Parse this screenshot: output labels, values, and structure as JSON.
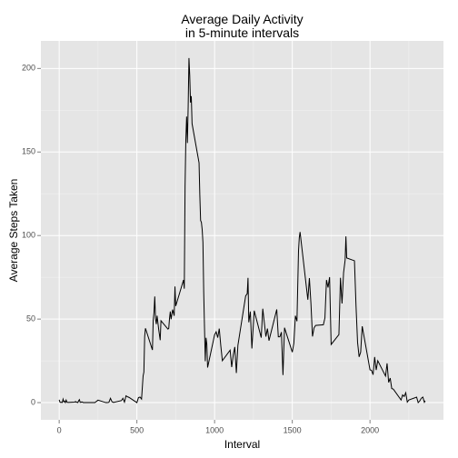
{
  "chart_data": {
    "type": "line",
    "title": "Average Daily Activity\nin 5-minute intervals",
    "x_label": "Interval",
    "y_label": "Average Steps Taken",
    "x": [
      0,
      5,
      10,
      15,
      20,
      25,
      30,
      35,
      40,
      45,
      50,
      55,
      100,
      105,
      110,
      115,
      120,
      125,
      130,
      135,
      140,
      145,
      150,
      155,
      200,
      230,
      250,
      300,
      310,
      320,
      330,
      340,
      350,
      400,
      410,
      420,
      430,
      440,
      450,
      500,
      510,
      520,
      530,
      540,
      545,
      550,
      555,
      600,
      605,
      610,
      615,
      620,
      625,
      630,
      640,
      650,
      655,
      700,
      705,
      710,
      715,
      720,
      730,
      740,
      745,
      750,
      800,
      805,
      810,
      815,
      820,
      825,
      830,
      835,
      840,
      845,
      850,
      855,
      900,
      905,
      910,
      915,
      920,
      925,
      930,
      935,
      940,
      945,
      950,
      955,
      1000,
      1010,
      1020,
      1030,
      1040,
      1050,
      1100,
      1110,
      1120,
      1130,
      1140,
      1150,
      1200,
      1210,
      1215,
      1220,
      1230,
      1240,
      1255,
      1300,
      1310,
      1330,
      1340,
      1350,
      1400,
      1410,
      1420,
      1430,
      1440,
      1450,
      1500,
      1510,
      1520,
      1530,
      1540,
      1545,
      1550,
      1600,
      1610,
      1620,
      1630,
      1640,
      1650,
      1700,
      1710,
      1720,
      1730,
      1740,
      1750,
      1800,
      1810,
      1820,
      1830,
      1840,
      1845,
      1850,
      1900,
      1910,
      1920,
      1930,
      1940,
      1950,
      2000,
      2010,
      2020,
      2030,
      2040,
      2050,
      2100,
      2110,
      2120,
      2130,
      2140,
      2150,
      2200,
      2210,
      2220,
      2230,
      2240,
      2250,
      2300,
      2310,
      2320,
      2330,
      2340,
      2350,
      2355
    ],
    "series": [
      {
        "name": "steps",
        "color": "#000000",
        "values": [
          1.7,
          0.3,
          0.1,
          0.2,
          0.1,
          2.1,
          0.5,
          0.9,
          0,
          1.5,
          0.3,
          0.1,
          0.3,
          0.7,
          0.2,
          0.3,
          0,
          1.1,
          1.8,
          0.2,
          0.2,
          0.4,
          0.3,
          0,
          0,
          0,
          1.5,
          0,
          0,
          0.2,
          2.6,
          0.5,
          0.1,
          1.2,
          2.6,
          0.3,
          4.1,
          3.5,
          3.1,
          0,
          3,
          3.3,
          2.1,
          16,
          18.3,
          39.5,
          44.5,
          31.5,
          49.3,
          53.8,
          63.5,
          50,
          47,
          52,
          44,
          37.4,
          49,
          44,
          44.4,
          50.5,
          54.5,
          49.9,
          55.7,
          52,
          69.5,
          57.8,
          73.4,
          68.2,
          129.4,
          157.5,
          171.2,
          155.4,
          177.3,
          206.2,
          195.9,
          179.6,
          183.4,
          167,
          143.5,
          124,
          109,
          108,
          103.7,
          95.9,
          66.2,
          45.2,
          24.8,
          38.8,
          35,
          21,
          40.6,
          42.4,
          38.9,
          44.3,
          34,
          25.1,
          31.4,
          21.3,
          28.4,
          33.3,
          17.7,
          34.3,
          63.9,
          65.2,
          74.7,
          48.1,
          54.5,
          32.4,
          55,
          38.9,
          56.2,
          39.5,
          44.3,
          37.1,
          55.8,
          39.4,
          39.4,
          42.2,
          16.5,
          44.8,
          30.2,
          35.5,
          52,
          48.7,
          90.8,
          98.7,
          102.1,
          61.6,
          74.5,
          59.3,
          39.6,
          44.7,
          46.2,
          46.6,
          50.7,
          73.4,
          68.9,
          75.1,
          34.8,
          40.7,
          74.7,
          59.3,
          77.8,
          85.3,
          99.5,
          86.6,
          84.9,
          58,
          36.1,
          27.4,
          30.2,
          45.7,
          19.6,
          19.3,
          16.7,
          27.3,
          19.5,
          25.1,
          15.9,
          23.5,
          12.1,
          14.7,
          8.4,
          8.1,
          1.6,
          4.6,
          3.7,
          5.9,
          0.3,
          1.6,
          3.3,
          0,
          1,
          2.6,
          3.3,
          0.2,
          1.1
        ]
      }
    ],
    "xlim": [
      -117.75,
      2472.75
    ],
    "xticks": [
      0,
      500,
      1000,
      1500,
      2000
    ],
    "ylim": [
      -10.3,
      216.5
    ],
    "yticks": [
      0,
      50,
      100,
      150,
      200
    ],
    "grid": true
  }
}
